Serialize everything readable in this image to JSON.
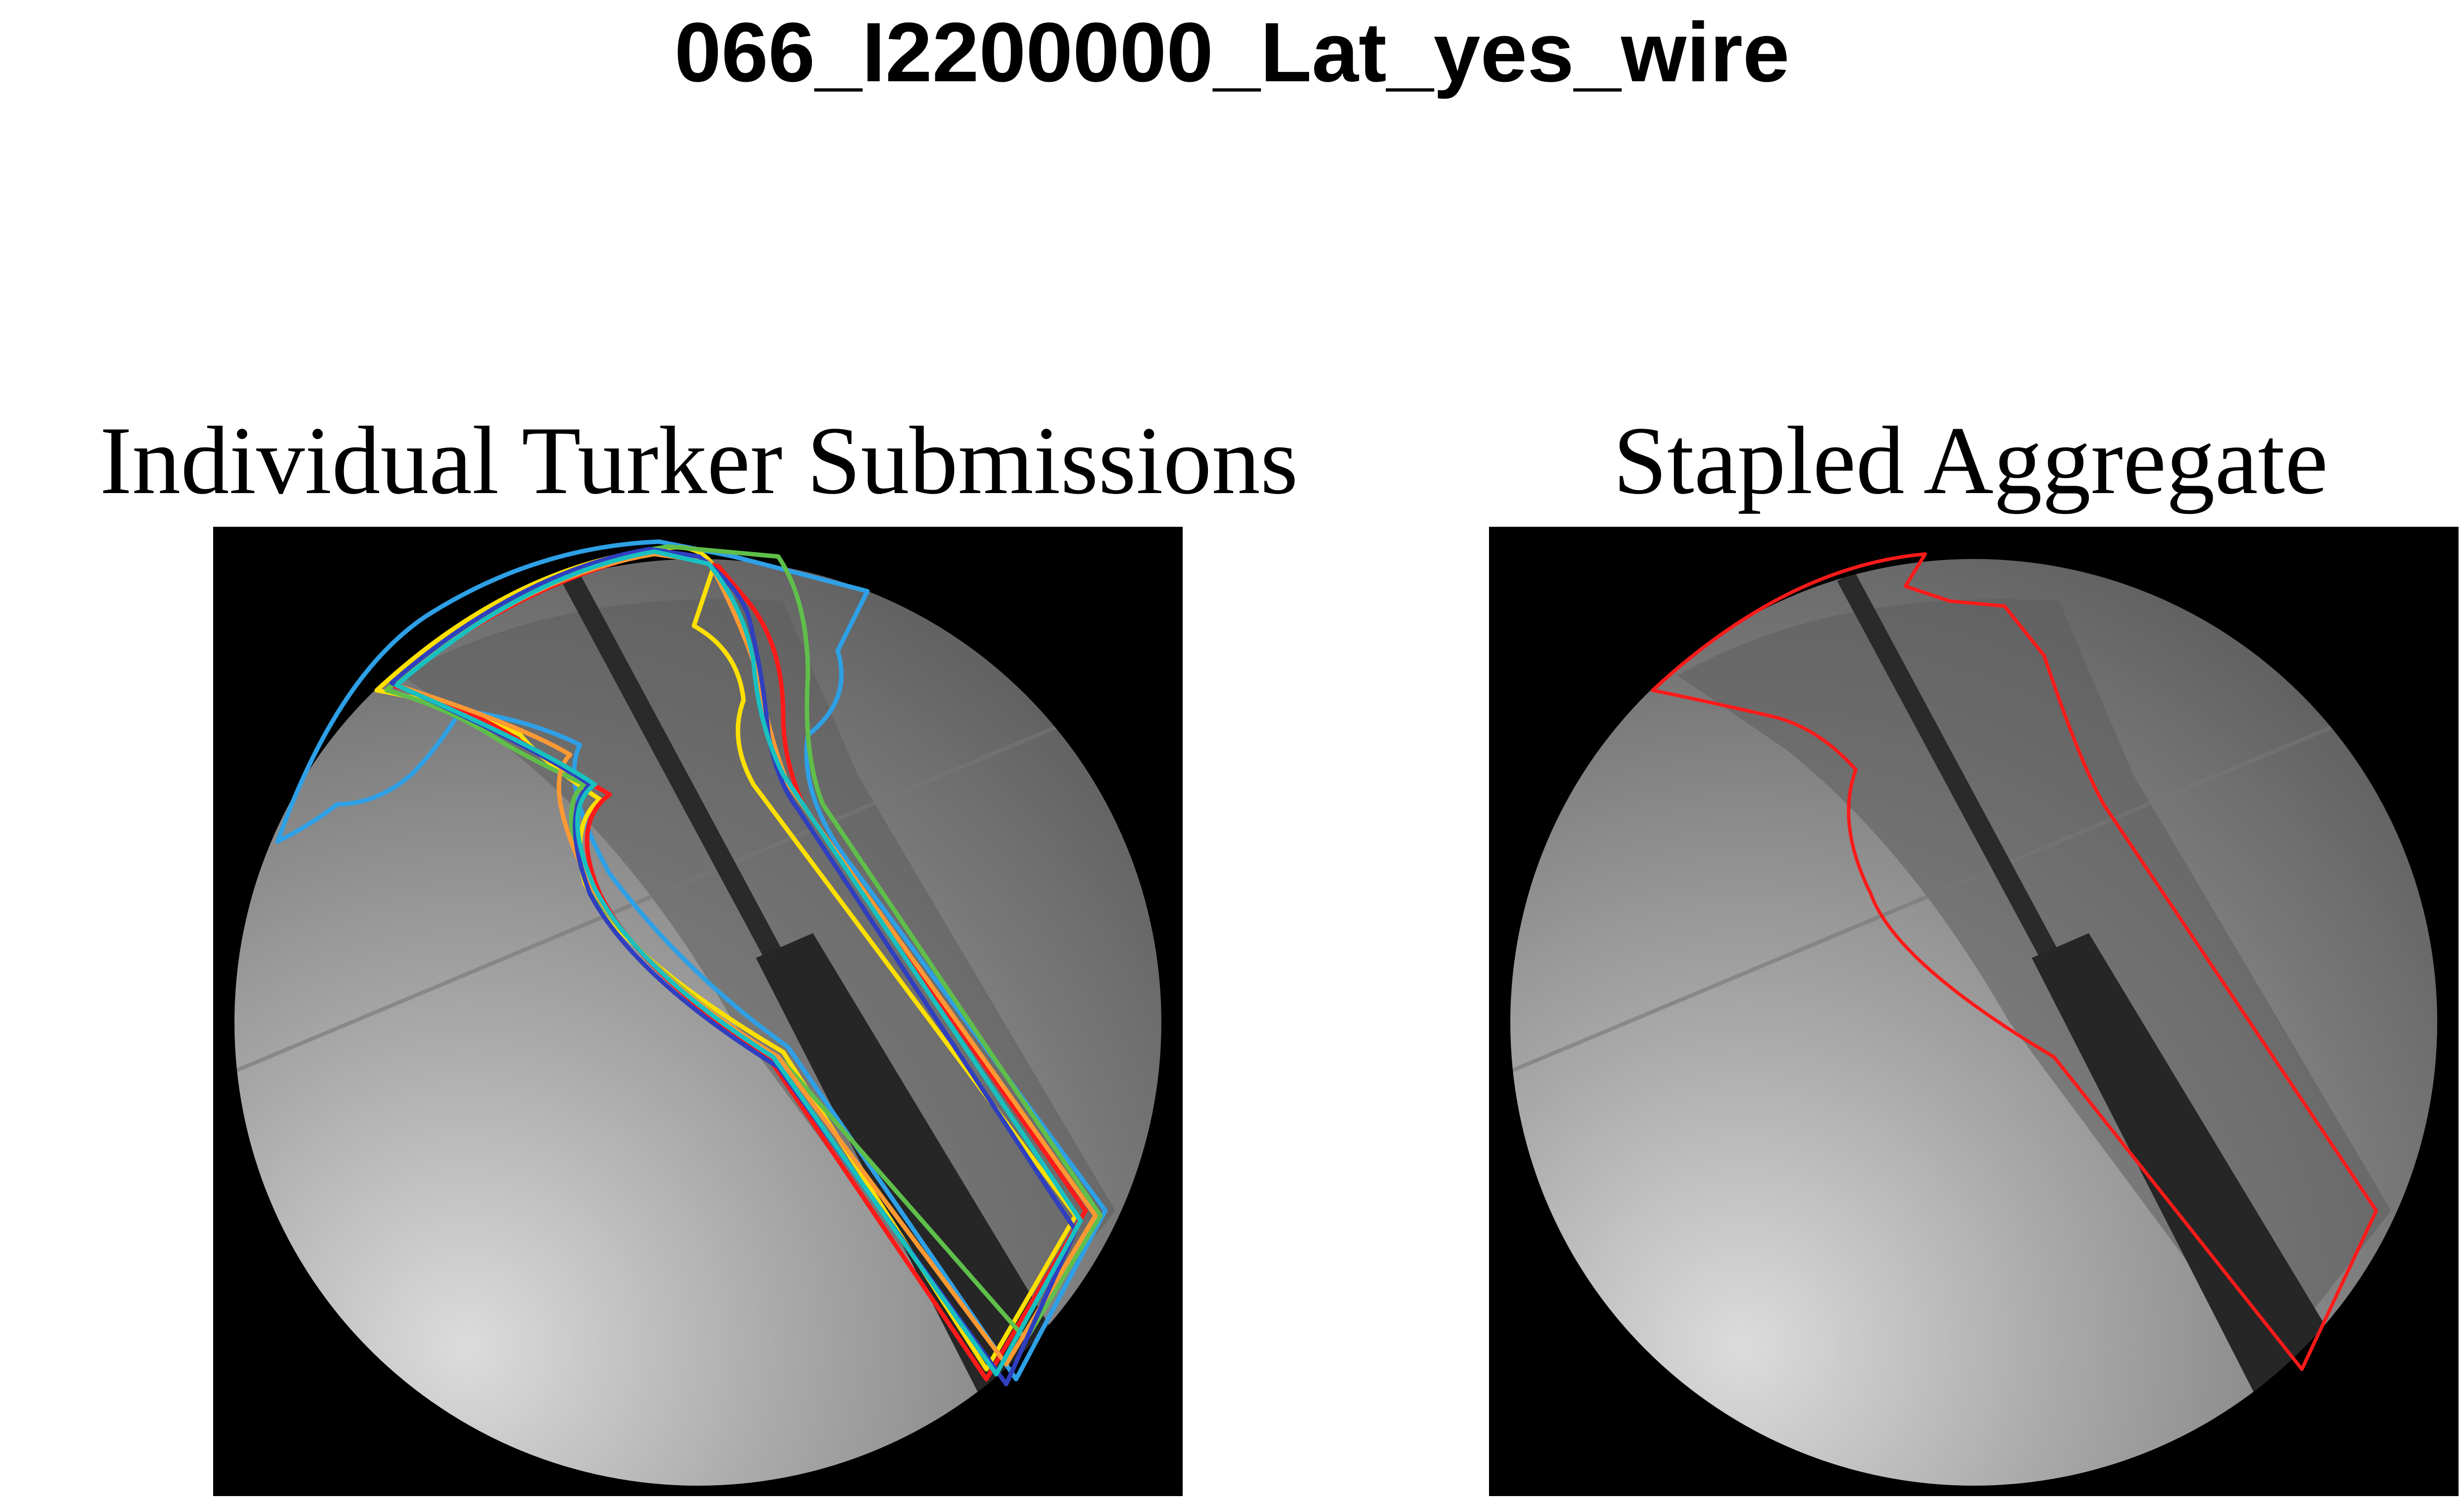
{
  "title": "066_I2200000_Lat_yes_wire",
  "panels": [
    {
      "title": "Individual Turker Submissions"
    },
    {
      "title": "Stapled Aggregate"
    }
  ],
  "colors": {
    "background": "#000000",
    "aggregate_outline": "#ff1a1a",
    "turker_outlines": [
      "#2ea0e6",
      "#ffe000",
      "#ff1a1a",
      "#5fbf4a",
      "#ff9933",
      "#2f3fbf",
      "#18c0c0"
    ]
  }
}
